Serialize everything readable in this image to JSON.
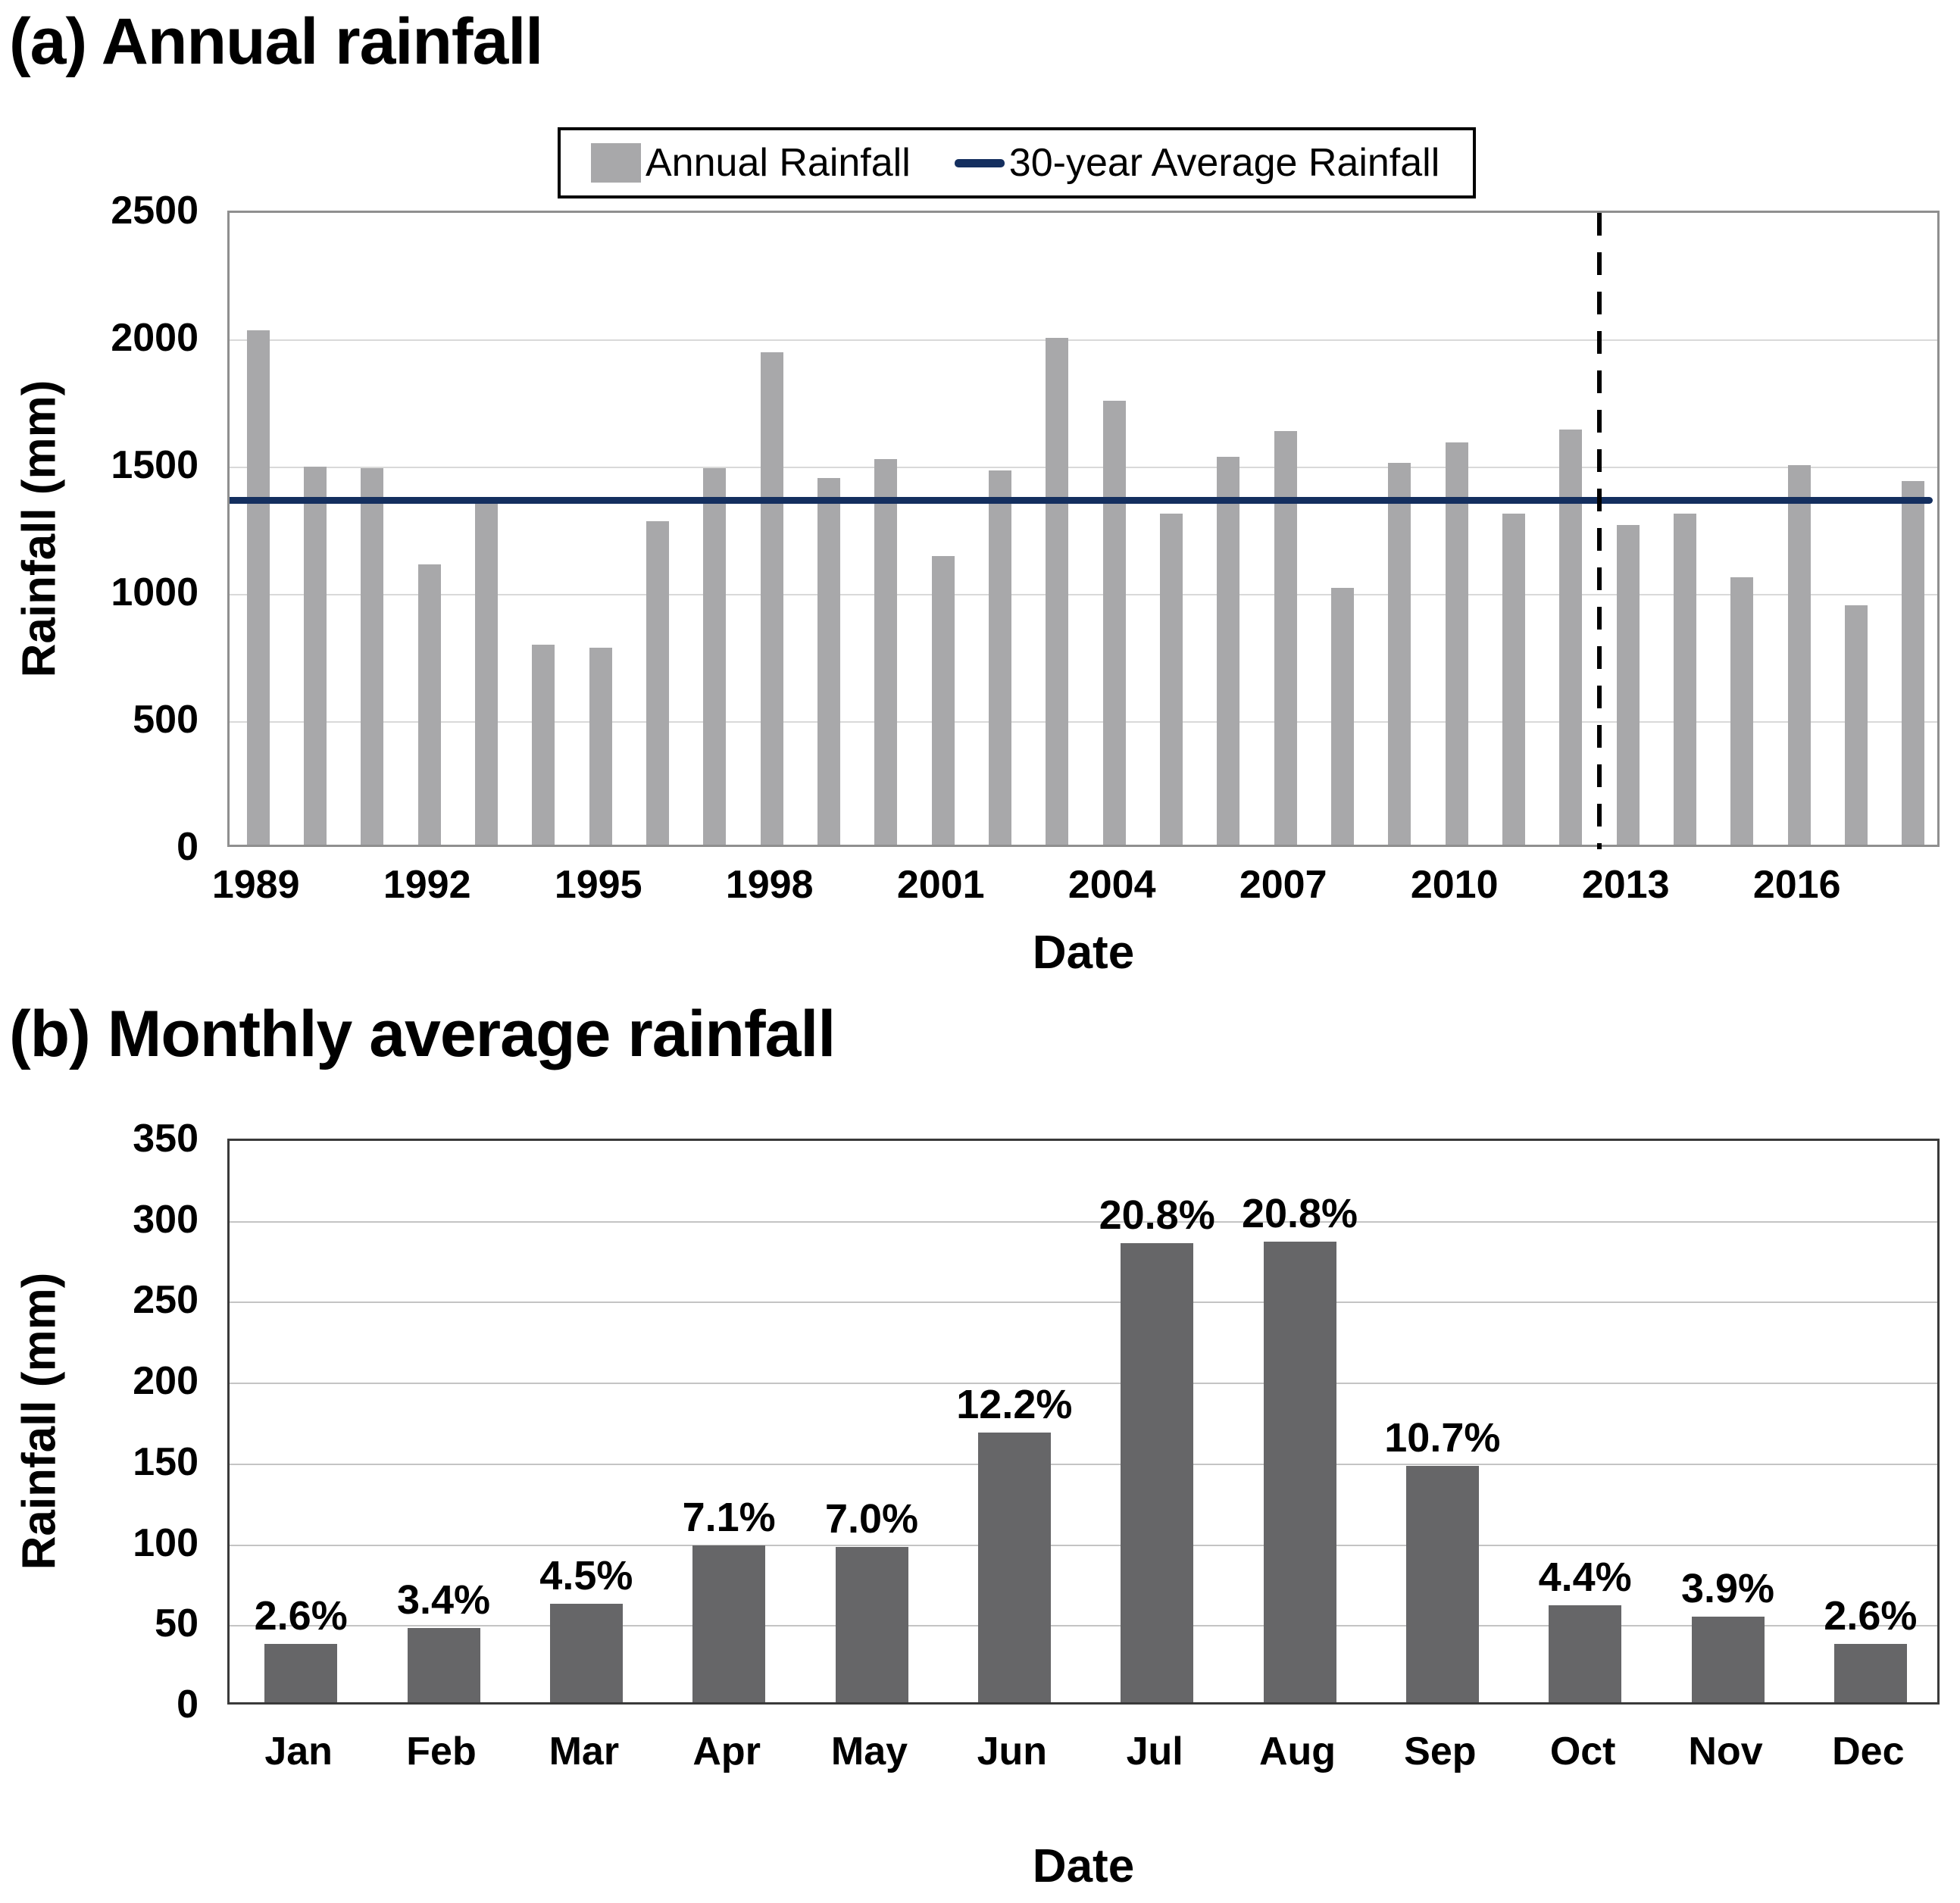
{
  "figure_background": "#ffffff",
  "colors": {
    "annual_bar": "#a8a8aa",
    "monthly_bar": "#666668",
    "average_line": "#142f5f",
    "dashed_line": "#000000",
    "text": "#000000"
  },
  "chart_data": [
    {
      "type": "bar",
      "panel": "a",
      "title": "(a) Annual rainfall",
      "xlabel": "Date",
      "ylabel": "Rainfall (mm)",
      "ylim": [
        0,
        2500
      ],
      "ytick_step": 500,
      "ytick_labels": [
        "0",
        "500",
        "1000",
        "1500",
        "2000",
        "2500"
      ],
      "grid": true,
      "legend_position": "top-center",
      "series_label": "Annual Rainfall",
      "years": [
        1989,
        1990,
        1991,
        1992,
        1993,
        1994,
        1995,
        1996,
        1997,
        1998,
        1999,
        2000,
        2001,
        2002,
        2003,
        2004,
        2005,
        2006,
        2007,
        2008,
        2009,
        2010,
        2011,
        2012,
        2013,
        2014,
        2015,
        2016,
        2017,
        2018
      ],
      "values": [
        2020,
        1485,
        1480,
        1100,
        1360,
        785,
        775,
        1270,
        1480,
        1935,
        1440,
        1515,
        1135,
        1470,
        1990,
        1745,
        1300,
        1525,
        1625,
        1010,
        1500,
        1580,
        1300,
        1630,
        1255,
        1300,
        1050,
        1490,
        940,
        1430
      ],
      "xtick_labels": [
        "1989",
        "1992",
        "1995",
        "1998",
        "2001",
        "2004",
        "2007",
        "2010",
        "2013",
        "2016"
      ],
      "xtick_year_interval": 3,
      "average_line": {
        "label": "30-year Average Rainfall",
        "value": 1370
      },
      "dashed_vline_year": 2012.5
    },
    {
      "type": "bar",
      "panel": "b",
      "title": "(b) Monthly average rainfall",
      "xlabel": "Date",
      "ylabel": "Rainfall (mm)",
      "ylim": [
        0,
        350
      ],
      "ytick_step": 50,
      "ytick_labels": [
        "0",
        "50",
        "100",
        "150",
        "200",
        "250",
        "300",
        "350"
      ],
      "grid": true,
      "categories": [
        "Jan",
        "Feb",
        "Mar",
        "Apr",
        "May",
        "Jun",
        "Jul",
        "Aug",
        "Sep",
        "Oct",
        "Nov",
        "Dec"
      ],
      "values": [
        36,
        46,
        61,
        97,
        96,
        167,
        284,
        285,
        146,
        60,
        53,
        36
      ],
      "bar_labels": [
        "2.6%",
        "3.4%",
        "4.5%",
        "7.1%",
        "7.0%",
        "12.2%",
        "20.8%",
        "20.8%",
        "10.7%",
        "4.4%",
        "3.9%",
        "2.6%"
      ]
    }
  ]
}
